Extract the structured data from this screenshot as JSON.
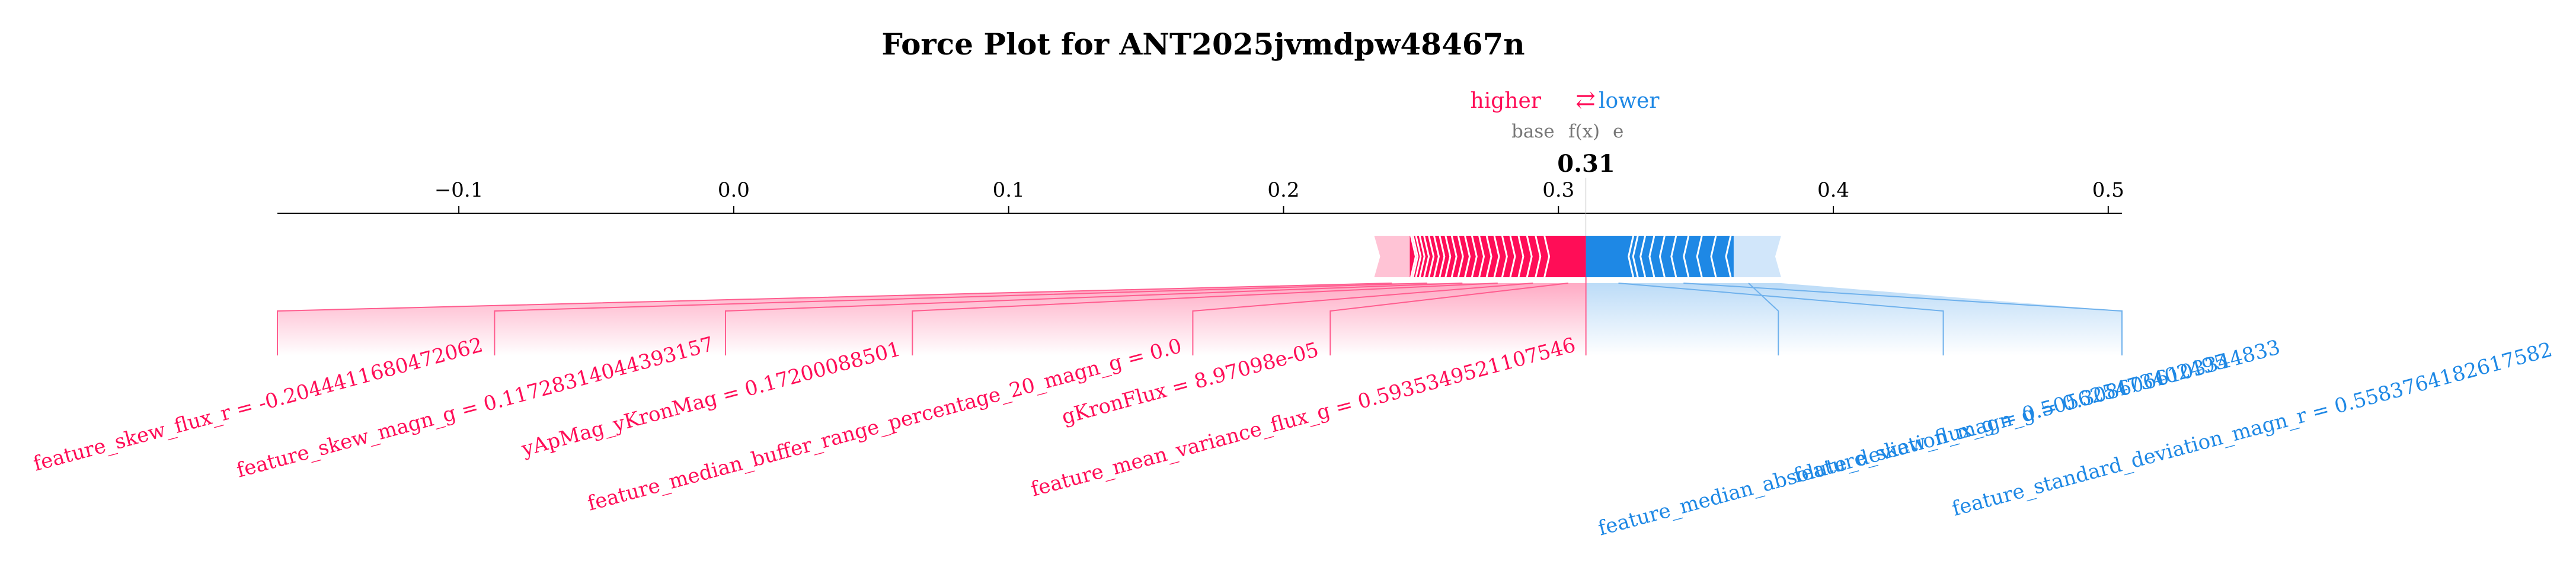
{
  "title": "Force Plot for ANT2025jvmdpw48467n",
  "legend": {
    "higher": "higher",
    "arrow": "⇄",
    "lower": "lower"
  },
  "marker_labels": {
    "base": "base",
    "fx": "f(x)",
    "base_tail": "e"
  },
  "output_value_label": "0.31",
  "colors": {
    "positive": "#ff0d57",
    "positive_light": "#ffc3d5",
    "negative": "#1e88e5",
    "negative_light": "#d1e6fa",
    "link_positive": "#ff5d8f",
    "link_negative": "#6fb1ec",
    "axis": "#000000",
    "muted_text": "#777777"
  },
  "chart_data": {
    "type": "force",
    "title": "Force Plot for ANT2025jvmdpw48467n",
    "output_value": 0.31,
    "x_range": [
      -0.166,
      0.505
    ],
    "x_ticks": [
      {
        "value": -0.1,
        "label": "−0.1"
      },
      {
        "value": 0.0,
        "label": "0.0"
      },
      {
        "value": 0.1,
        "label": "0.1"
      },
      {
        "value": 0.2,
        "label": "0.2"
      },
      {
        "value": 0.3,
        "label": "0.3"
      },
      {
        "value": 0.4,
        "label": "0.4"
      },
      {
        "value": 0.5,
        "label": "0.5"
      }
    ],
    "positive_bar_range": [
      0.233,
      0.31
    ],
    "negative_bar_range": [
      0.31,
      0.381
    ],
    "positive_features": [
      {
        "label": "feature_skew_flux_r = -0.2044411680472062",
        "anchor": -0.166
      },
      {
        "label": "feature_skew_magn_g = 0.11728314044393157",
        "anchor": -0.087
      },
      {
        "label": "yApMag_yKronMag = 0.17200088501",
        "anchor": -0.003
      },
      {
        "label": "feature_median_buffer_range_percentage_20_magn_g = 0.0",
        "anchor": 0.065
      },
      {
        "label": "gKronFlux = 8.97098e-05",
        "anchor": 0.167
      },
      {
        "label": "feature_mean_variance_flux_g = 0.5935349521107546",
        "anchor": 0.217
      }
    ],
    "negative_features": [
      {
        "label": "feature_median_absolute_deviation_magn_g = 0.3086066103344833",
        "anchor": 0.38
      },
      {
        "label": "feature_standard_deviation_magn_r = 0.5583764182617582",
        "anchor": 0.505
      },
      {
        "label": "feature_skew_flux_g = 0.505625473402495",
        "anchor": 0.44
      }
    ]
  }
}
